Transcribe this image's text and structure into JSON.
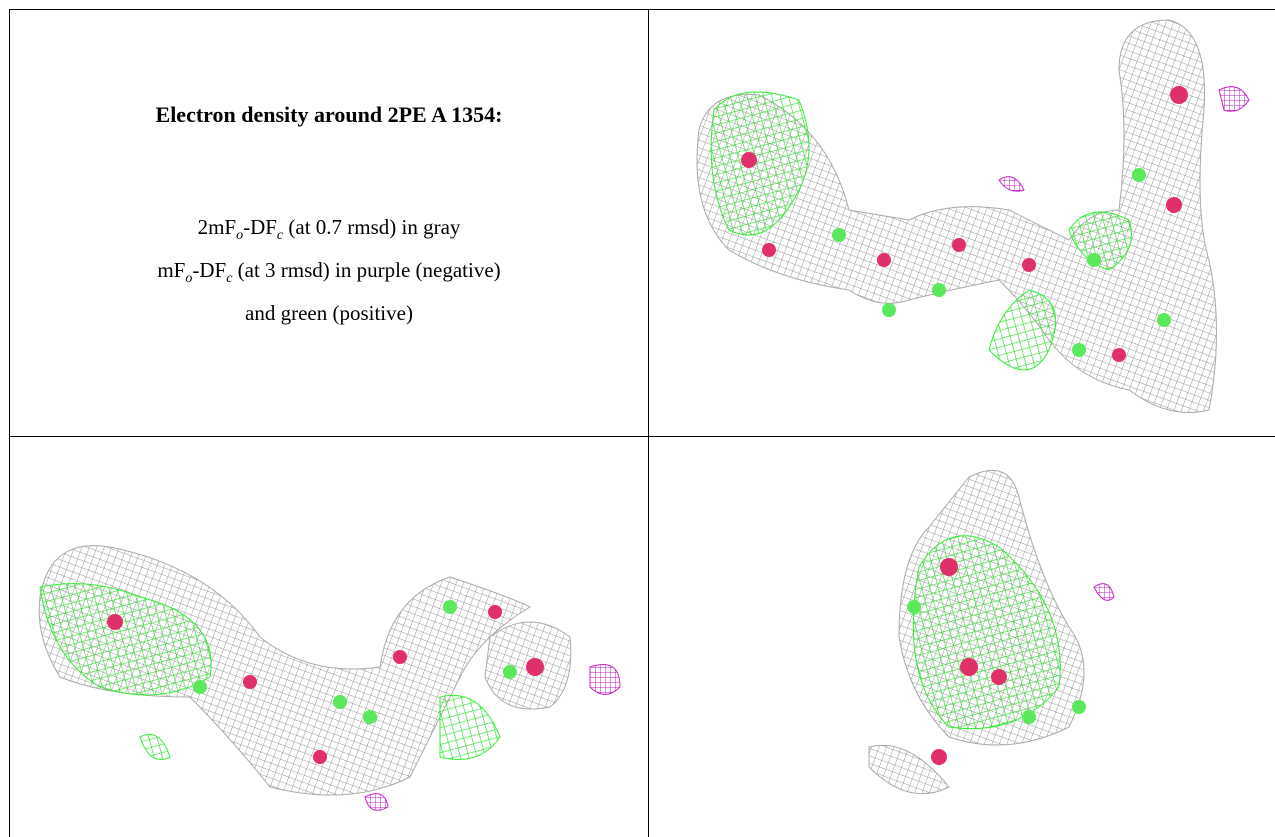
{
  "header": {
    "title": "Electron density around 2PE A 1354:"
  },
  "legend": {
    "lines": [
      [
        "2mF",
        "o",
        "-DF",
        "c",
        " (at 0.7 rmsd) in gray"
      ],
      [
        "mF",
        "o",
        "-DF",
        "c",
        " (at 3 rmsd) in purple (negative)"
      ],
      [
        "and green (positive)"
      ]
    ]
  }
}
